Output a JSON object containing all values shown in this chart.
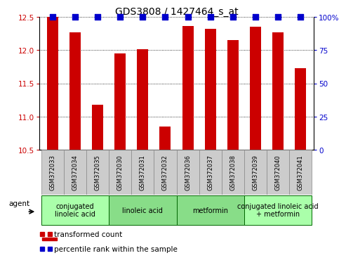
{
  "title": "GDS3808 / 1427464_s_at",
  "samples": [
    "GSM372033",
    "GSM372034",
    "GSM372035",
    "GSM372030",
    "GSM372031",
    "GSM372032",
    "GSM372036",
    "GSM372037",
    "GSM372038",
    "GSM372039",
    "GSM372040",
    "GSM372041"
  ],
  "bar_values": [
    12.5,
    12.27,
    11.18,
    11.95,
    12.02,
    10.85,
    12.37,
    12.32,
    12.15,
    12.35,
    12.27,
    11.73
  ],
  "percentile_values": [
    100,
    100,
    100,
    100,
    100,
    100,
    100,
    100,
    100,
    100,
    100,
    100
  ],
  "bar_color": "#cc0000",
  "percentile_color": "#0000cc",
  "ylim_left": [
    10.5,
    12.5
  ],
  "ylim_right": [
    0,
    100
  ],
  "yticks_left": [
    10.5,
    11.0,
    11.5,
    12.0,
    12.5
  ],
  "yticks_right": [
    0,
    25,
    50,
    75,
    100
  ],
  "ytick_labels_right": [
    "0",
    "25",
    "50",
    "75",
    "100%"
  ],
  "groups": [
    {
      "label": "conjugated\nlinoleic acid",
      "start": 0,
      "end": 2,
      "color": "#aaffaa"
    },
    {
      "label": "linoleic acid",
      "start": 3,
      "end": 5,
      "color": "#88dd88"
    },
    {
      "label": "metformin",
      "start": 6,
      "end": 8,
      "color": "#88dd88"
    },
    {
      "label": "conjugated linoleic acid\n+ metformin",
      "start": 9,
      "end": 11,
      "color": "#aaffaa"
    }
  ],
  "agent_label": "agent",
  "legend_items": [
    {
      "label": "transformed count",
      "color": "#cc0000"
    },
    {
      "label": "percentile rank within the sample",
      "color": "#0000cc"
    }
  ],
  "sample_box_color": "#cccccc",
  "bar_width": 0.5,
  "percentile_marker_size": 36,
  "title_fontsize": 10,
  "tick_fontsize": 7.5,
  "sample_fontsize": 6,
  "group_fontsize": 7,
  "legend_fontsize": 7.5
}
